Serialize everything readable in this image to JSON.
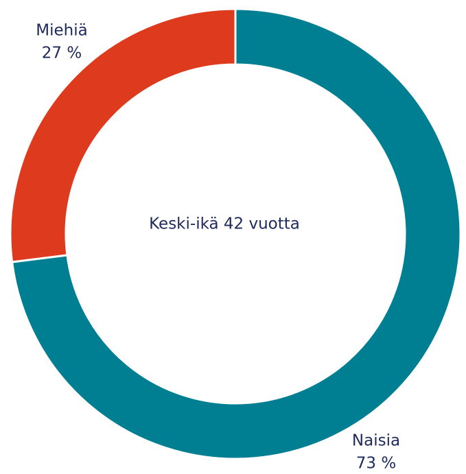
{
  "chart_data": {
    "type": "donut",
    "categories": [
      "Naisia",
      "Miehiä"
    ],
    "values": [
      73,
      27
    ],
    "value_labels": [
      "73 %",
      "27 %"
    ],
    "colors": [
      "#007f93",
      "#dd3a1e"
    ],
    "annotation": "Keski-ikä 42 vuotta"
  }
}
